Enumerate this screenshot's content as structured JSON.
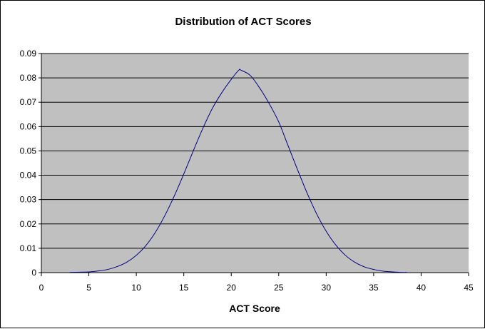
{
  "chart_data": {
    "type": "line",
    "title": "Distribution of ACT Scores",
    "xlabel": "ACT Score",
    "ylabel": "",
    "xlim": [
      0,
      45
    ],
    "ylim": [
      0,
      0.09
    ],
    "x_ticks": [
      "0",
      "5",
      "10",
      "15",
      "20",
      "25",
      "30",
      "35",
      "40",
      "45"
    ],
    "y_ticks": [
      "0",
      "0.01",
      "0.02",
      "0.03",
      "0.04",
      "0.05",
      "0.06",
      "0.07",
      "0.08",
      "0.09"
    ],
    "grid": "horizontal",
    "legend": "none",
    "colors": {
      "plot_background": "#c0c0c0",
      "line": "#000080",
      "grid": "#000000"
    },
    "series": [
      {
        "x": [
          3,
          4,
          5,
          6,
          7,
          8,
          9,
          10,
          11,
          12,
          13,
          14,
          15,
          16,
          17,
          18,
          19,
          20,
          20.8,
          21,
          22,
          23,
          24,
          25,
          26,
          27,
          28,
          29,
          30,
          31,
          32,
          33,
          34,
          35,
          36,
          37,
          38,
          38.5
        ],
        "y": [
          0.0001,
          0.0002,
          0.0003,
          0.0007,
          0.0013,
          0.0025,
          0.0043,
          0.0071,
          0.0111,
          0.0165,
          0.0234,
          0.0315,
          0.0405,
          0.05,
          0.0592,
          0.0674,
          0.0739,
          0.0794,
          0.0832,
          0.0832,
          0.081,
          0.0758,
          0.0694,
          0.0619,
          0.052,
          0.0421,
          0.0326,
          0.0241,
          0.017,
          0.0114,
          0.0072,
          0.0043,
          0.0024,
          0.0013,
          0.0006,
          0.0003,
          0.0001,
          0.0001
        ]
      }
    ]
  }
}
